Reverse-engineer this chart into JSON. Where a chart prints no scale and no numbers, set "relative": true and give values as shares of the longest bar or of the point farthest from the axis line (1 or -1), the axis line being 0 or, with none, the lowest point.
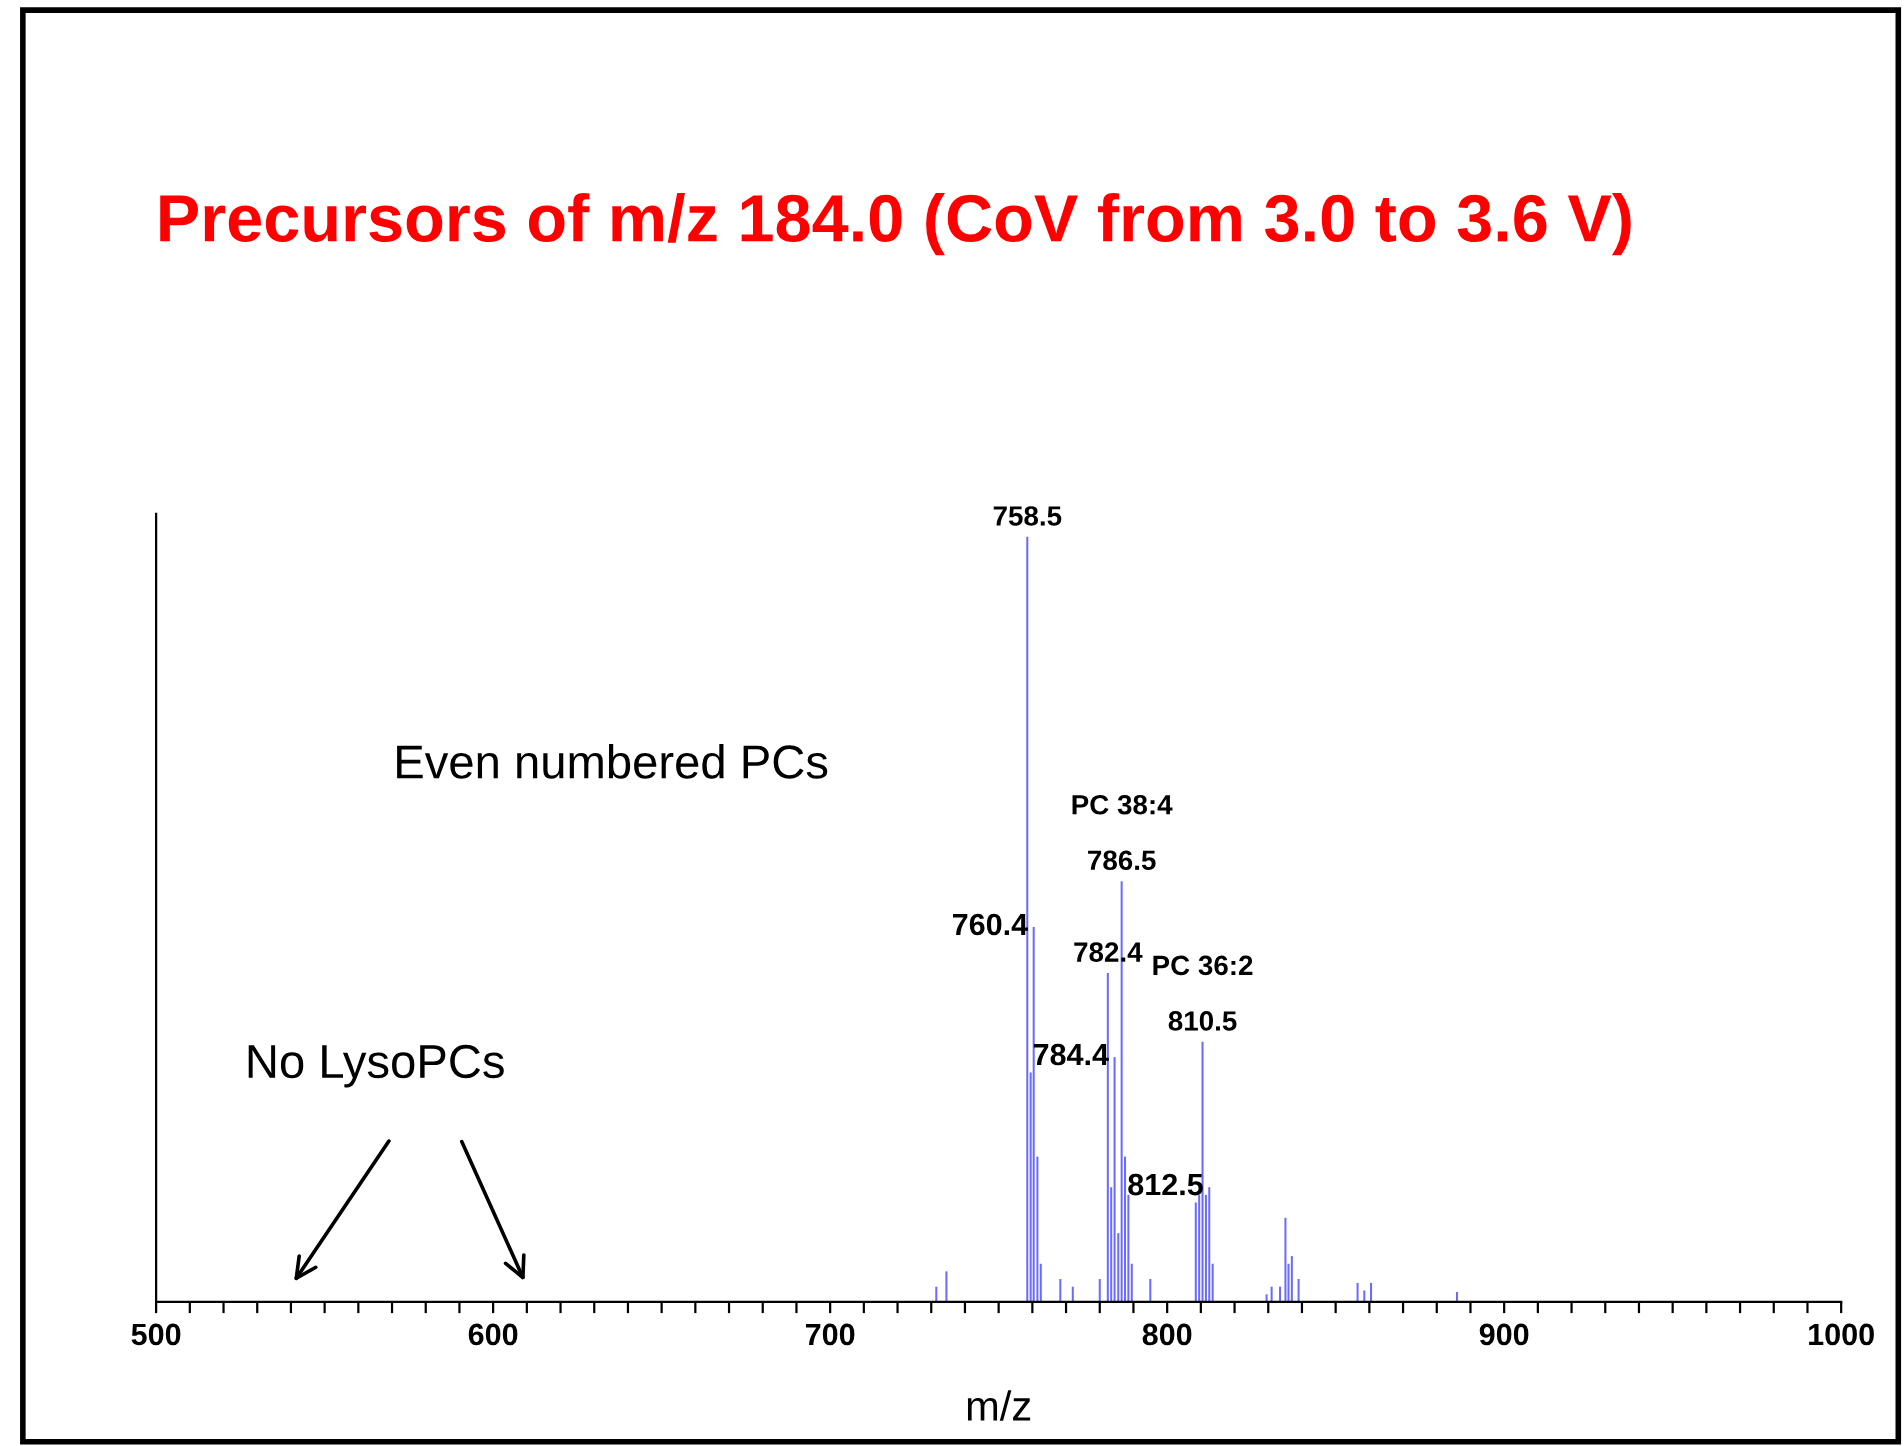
{
  "chart_data": {
    "type": "bar",
    "relative": true,
    "title": "Precursors of m/z 184.0 (CoV from 3.0 to 3.6 V)",
    "xlabel": "m/z",
    "x": [
      731.5,
      734.5,
      758.5,
      759.5,
      760.4,
      761.5,
      762.5,
      768.3,
      772,
      780,
      782.4,
      783.4,
      784.4,
      785.5,
      786.5,
      787.5,
      788.5,
      789.5,
      795,
      808.5,
      809.5,
      810.5,
      811.5,
      812.5,
      813.5,
      829.5,
      831,
      833.5,
      835.1,
      836,
      837,
      839,
      856.5,
      858.5,
      860.5,
      886
    ],
    "values": [
      0.02,
      0.04,
      1.0,
      0.3,
      0.49,
      0.19,
      0.05,
      0.03,
      0.02,
      0.03,
      0.43,
      0.15,
      0.32,
      0.09,
      0.55,
      0.19,
      0.14,
      0.05,
      0.03,
      0.13,
      0.14,
      0.34,
      0.14,
      0.15,
      0.05,
      0.01,
      0.02,
      0.02,
      0.11,
      0.05,
      0.06,
      0.03,
      0.025,
      0.015,
      0.025,
      0.013
    ],
    "color": "#6a6aff",
    "xlim": [
      500,
      1000
    ],
    "xticks": [
      500,
      {
        "value": 510,
        "label": null
      },
      {
        "value": 520,
        "label": null
      },
      {
        "value": 530,
        "label": null
      },
      {
        "value": 540,
        "label": null
      },
      {
        "value": 550,
        "label": null
      },
      {
        "value": 560,
        "label": null
      },
      {
        "value": 570,
        "label": null
      },
      {
        "value": 580,
        "label": null
      },
      {
        "value": 590,
        "label": null
      },
      600,
      {
        "value": 610,
        "label": null
      },
      {
        "value": 620,
        "label": null
      },
      {
        "value": 630,
        "label": null
      },
      {
        "value": 640,
        "label": null
      },
      {
        "value": 650,
        "label": null
      },
      {
        "value": 660,
        "label": null
      },
      {
        "value": 670,
        "label": null
      },
      {
        "value": 680,
        "label": null
      },
      {
        "value": 690,
        "label": null
      },
      700,
      {
        "value": 710,
        "label": null
      },
      {
        "value": 720,
        "label": null
      },
      {
        "value": 730,
        "label": null
      },
      {
        "value": 740,
        "label": null
      },
      {
        "value": 750,
        "label": null
      },
      {
        "value": 760,
        "label": null
      },
      {
        "value": 770,
        "label": null
      },
      {
        "value": 780,
        "label": null
      },
      {
        "value": 790,
        "label": null
      },
      800,
      {
        "value": 810,
        "label": null
      },
      {
        "value": 820,
        "label": null
      },
      {
        "value": 830,
        "label": null
      },
      {
        "value": 840,
        "label": null
      },
      {
        "value": 850,
        "label": null
      },
      {
        "value": 860,
        "label": null
      },
      {
        "value": 870,
        "label": null
      },
      {
        "value": 880,
        "label": null
      },
      {
        "value": 890,
        "label": null
      },
      900,
      {
        "value": 910,
        "label": null
      },
      {
        "value": 920,
        "label": null
      },
      {
        "value": 930,
        "label": null
      },
      {
        "value": 940,
        "label": null
      },
      {
        "value": 950,
        "label": null
      },
      {
        "value": 960,
        "label": null
      },
      {
        "value": 970,
        "label": null
      },
      {
        "value": 980,
        "label": null
      },
      {
        "value": 990,
        "label": null
      },
      1000
    ],
    "grid": false,
    "legend": false,
    "annotations": [
      {
        "text": "758.5",
        "x": 758.5,
        "y": 1.0
      },
      {
        "text": "760.4",
        "x": 760.4,
        "y": 0.49
      },
      {
        "text": "782.4",
        "x": 782.4,
        "y": 0.43
      },
      {
        "text": "784.4",
        "x": 784.4,
        "y": 0.32
      },
      {
        "text": "786.5",
        "x": 786.5,
        "y": 0.55
      },
      {
        "text": "PC 38:4",
        "x": 786.5,
        "y": 0.55
      },
      {
        "text": "810.5",
        "x": 810.5,
        "y": 0.34
      },
      {
        "text": "PC 36:2",
        "x": 810.5,
        "y": 0.34
      },
      {
        "text": "812.5",
        "x": 812.5,
        "y": 0.15
      },
      "Even numbered PCs",
      "No LysoPCs"
    ]
  }
}
